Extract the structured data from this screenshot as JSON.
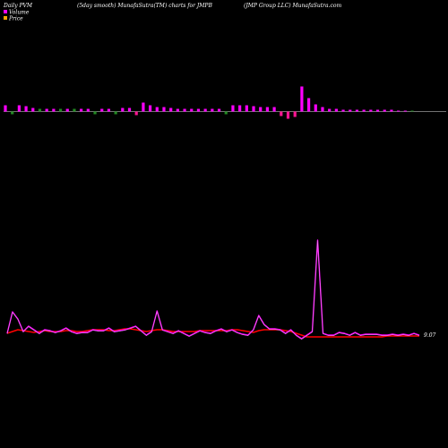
{
  "header": {
    "left": "Daily PVM",
    "center": "(5day smooth) MunafaSutra(TM) charts for JMPB",
    "right": "(JMP Group LLC) MunafaSutra.com"
  },
  "legend": {
    "items": [
      {
        "label": "Volume",
        "color": "#ff00ff"
      },
      {
        "label": "Price",
        "color": "#ffa500"
      }
    ]
  },
  "colors": {
    "background": "#000000",
    "volume_up": "#ff00ff",
    "volume_down_alt": "#ff1493",
    "volume_green": "#228b22",
    "volume_line": "#ee82ee",
    "price_line": "#ff0000",
    "baseline": "#aaaaaa"
  },
  "chart_data": {
    "type": "bar",
    "x_count": 60,
    "volume_bars": [
      {
        "v": 7,
        "c": "m"
      },
      {
        "v": -3,
        "c": "g"
      },
      {
        "v": 7,
        "c": "m"
      },
      {
        "v": 6,
        "c": "m"
      },
      {
        "v": 4,
        "c": "m"
      },
      {
        "v": 3,
        "c": "g"
      },
      {
        "v": 3,
        "c": "m"
      },
      {
        "v": 3,
        "c": "m"
      },
      {
        "v": 3,
        "c": "g"
      },
      {
        "v": 3,
        "c": "m"
      },
      {
        "v": 3,
        "c": "g"
      },
      {
        "v": 3,
        "c": "m"
      },
      {
        "v": 3,
        "c": "m"
      },
      {
        "v": -3,
        "c": "g"
      },
      {
        "v": 3,
        "c": "m"
      },
      {
        "v": 3,
        "c": "m"
      },
      {
        "v": -3,
        "c": "g"
      },
      {
        "v": 4,
        "c": "m"
      },
      {
        "v": 4,
        "c": "m"
      },
      {
        "v": -4,
        "c": "r"
      },
      {
        "v": 10,
        "c": "m"
      },
      {
        "v": 7,
        "c": "m"
      },
      {
        "v": 5,
        "c": "m"
      },
      {
        "v": 5,
        "c": "m"
      },
      {
        "v": 4,
        "c": "m"
      },
      {
        "v": 3,
        "c": "m"
      },
      {
        "v": 3,
        "c": "m"
      },
      {
        "v": 3,
        "c": "m"
      },
      {
        "v": 3,
        "c": "m"
      },
      {
        "v": 3,
        "c": "m"
      },
      {
        "v": 3,
        "c": "m"
      },
      {
        "v": 3,
        "c": "m"
      },
      {
        "v": -3,
        "c": "g"
      },
      {
        "v": 7,
        "c": "m"
      },
      {
        "v": 7,
        "c": "m"
      },
      {
        "v": 7,
        "c": "m"
      },
      {
        "v": 6,
        "c": "m"
      },
      {
        "v": 5,
        "c": "m"
      },
      {
        "v": 5,
        "c": "m"
      },
      {
        "v": 5,
        "c": "m"
      },
      {
        "v": -5,
        "c": "r"
      },
      {
        "v": -8,
        "c": "r"
      },
      {
        "v": -6,
        "c": "r"
      },
      {
        "v": 28,
        "c": "m"
      },
      {
        "v": 15,
        "c": "m"
      },
      {
        "v": 8,
        "c": "m"
      },
      {
        "v": 5,
        "c": "m"
      },
      {
        "v": 3,
        "c": "m"
      },
      {
        "v": 3,
        "c": "m"
      },
      {
        "v": 2,
        "c": "m"
      },
      {
        "v": 2,
        "c": "m"
      },
      {
        "v": 2,
        "c": "m"
      },
      {
        "v": 2,
        "c": "m"
      },
      {
        "v": 2,
        "c": "m"
      },
      {
        "v": 2,
        "c": "m"
      },
      {
        "v": 2,
        "c": "m"
      },
      {
        "v": 2,
        "c": "m"
      },
      {
        "v": 1,
        "c": "m"
      },
      {
        "v": 1,
        "c": "m"
      },
      {
        "v": 1,
        "c": "g"
      }
    ],
    "volume_line": [
      372,
      348,
      356,
      370,
      364,
      368,
      372,
      368,
      369,
      371,
      369,
      366,
      370,
      372,
      371,
      371,
      368,
      369,
      369,
      366,
      370,
      369,
      368,
      366,
      364,
      369,
      374,
      370,
      347,
      368,
      370,
      372,
      369,
      372,
      375,
      372,
      369,
      371,
      372,
      369,
      367,
      370,
      368,
      371,
      373,
      374,
      368,
      352,
      362,
      367,
      367,
      368,
      372,
      368,
      374,
      378,
      374,
      370,
      268,
      372,
      374,
      374,
      371,
      372,
      374,
      371,
      374,
      373,
      373,
      373,
      374,
      374,
      373,
      374,
      373,
      374,
      372,
      374
    ],
    "price_line": [
      372,
      370,
      368,
      369,
      370,
      371,
      370,
      369,
      370,
      370,
      370,
      369,
      369,
      370,
      370,
      369,
      368,
      368,
      368,
      369,
      369,
      368,
      367,
      367,
      368,
      369,
      370,
      369,
      368,
      368,
      369,
      370,
      370,
      370,
      370,
      370,
      369,
      369,
      369,
      369,
      369,
      369,
      368,
      368,
      369,
      370,
      371,
      369,
      368,
      368,
      368,
      368,
      369,
      370,
      372,
      374,
      376,
      376,
      376,
      376,
      376,
      376,
      376,
      376,
      376,
      376,
      376,
      376,
      376,
      376,
      376,
      375,
      375,
      375,
      375,
      375,
      375,
      375
    ],
    "last_price_label": "9.07",
    "title": "(5day smooth) MunafaSutra(TM) charts for JMPB"
  }
}
